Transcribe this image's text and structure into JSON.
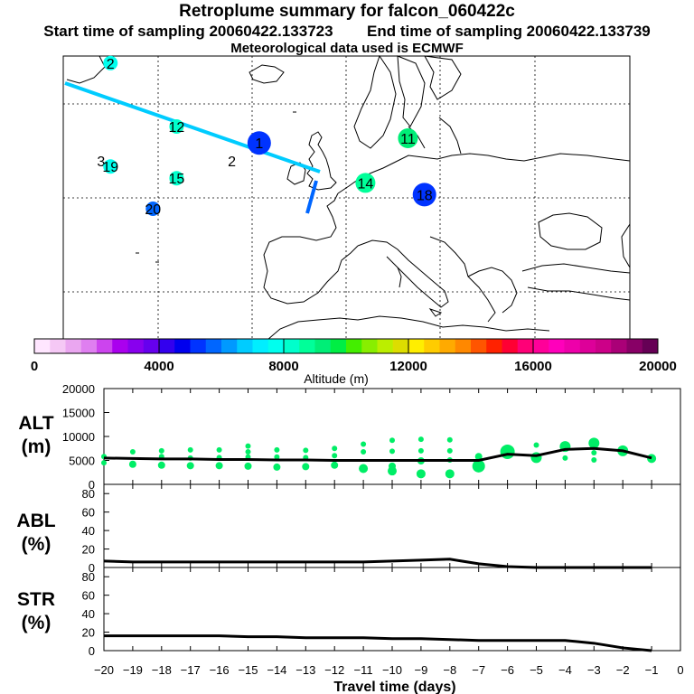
{
  "header": {
    "title": "Retroplume summary for falcon_060422c",
    "start_label": "Start time of sampling 20060422.133723",
    "end_label": "End time of sampling 20060422.133739",
    "met_label": "Meteorological data used is ECMWF"
  },
  "map": {
    "labels": [
      {
        "text": "12",
        "lon": -16,
        "lat": 55,
        "altitude_m": 8000,
        "marker": "small"
      },
      {
        "text": "11",
        "lon": 33,
        "lat": 52.5,
        "altitude_m": 9000,
        "marker": "medium"
      },
      {
        "text": "3",
        "lon": -32,
        "lat": 47.7,
        "altitude_m": null,
        "marker": "none"
      },
      {
        "text": "19",
        "lon": -30,
        "lat": 46.5,
        "altitude_m": 7500,
        "marker": "small"
      },
      {
        "text": "2",
        "lon": -4.3,
        "lat": 47.7,
        "altitude_m": null,
        "marker": "none"
      },
      {
        "text": "15",
        "lon": -16,
        "lat": 44,
        "altitude_m": 8000,
        "marker": "small"
      },
      {
        "text": "14",
        "lon": 24,
        "lat": 43,
        "altitude_m": 8500,
        "marker": "medium"
      },
      {
        "text": "18",
        "lon": 36.5,
        "lat": 40.5,
        "altitude_m": 5000,
        "marker": "large"
      },
      {
        "text": "20",
        "lon": -21,
        "lat": 37.5,
        "altitude_m": 5500,
        "marker": "small"
      },
      {
        "text": "1",
        "lon": 1.5,
        "lat": 51.5,
        "altitude_m": 5000,
        "marker": "large"
      },
      {
        "text": "2",
        "lon": -30,
        "lat": 68.5,
        "altitude_m": 7500,
        "marker": "small"
      }
    ]
  },
  "colorbar": {
    "title": "Altitude (m)",
    "tick_labels": [
      "0",
      "4000",
      "8000",
      "12000",
      "16000",
      "20000"
    ],
    "min": 0,
    "max": 20000,
    "colors": [
      "#ffe6ff",
      "#f5c8f5",
      "#eaa6f0",
      "#df7ff0",
      "#cc44ee",
      "#aa00ee",
      "#8800ee",
      "#6600ee",
      "#3300ee",
      "#0000ee",
      "#0033ff",
      "#0066ff",
      "#0099ff",
      "#00ccff",
      "#00eeff",
      "#00ffee",
      "#00ffcc",
      "#00ff99",
      "#00ee77",
      "#00ee44",
      "#44ee00",
      "#88ee00",
      "#bbee00",
      "#dddd00",
      "#ffee00",
      "#ffcc00",
      "#ffaa00",
      "#ff8800",
      "#ff5500",
      "#ff2200",
      "#ff0033",
      "#ff0077",
      "#ff0099",
      "#ff00bb",
      "#ee00aa",
      "#dd0099",
      "#cc0088",
      "#aa0077",
      "#880066",
      "#660055"
    ]
  },
  "chart_data": [
    {
      "type": "scatter",
      "panel": "ALT",
      "ylabel": "ALT\n(m)",
      "ylabel_lines": [
        "ALT",
        "(m)"
      ],
      "ylim": [
        0,
        20000
      ],
      "yticks": [
        0,
        5000,
        10000,
        15000,
        20000
      ],
      "ytick_labels": [
        "0",
        "5000",
        "10000",
        "15000",
        "20000"
      ],
      "x": [
        -20,
        -19,
        -18,
        -17,
        -16,
        -15,
        -14,
        -13,
        -12,
        -11,
        -10,
        -9,
        -8,
        -7,
        -6,
        -5,
        -4,
        -3,
        -2,
        -1
      ],
      "mean_line": [
        5500,
        5400,
        5300,
        5300,
        5200,
        5200,
        5100,
        5100,
        5000,
        5000,
        5000,
        5000,
        5000,
        5000,
        6300,
        6000,
        7300,
        7500,
        7000,
        5500
      ],
      "clusters": [
        {
          "x": -20,
          "y": [
            5800,
            4500
          ],
          "size": [
            3,
            3
          ]
        },
        {
          "x": -19,
          "y": [
            6800,
            4200
          ],
          "size": [
            3,
            4
          ]
        },
        {
          "x": -18,
          "y": [
            7000,
            5800,
            4000
          ],
          "size": [
            3,
            3,
            4
          ]
        },
        {
          "x": -17,
          "y": [
            7200,
            5500,
            3900
          ],
          "size": [
            3,
            3,
            4
          ]
        },
        {
          "x": -16,
          "y": [
            7200,
            5600,
            3900
          ],
          "size": [
            3,
            3,
            4
          ]
        },
        {
          "x": -15,
          "y": [
            8000,
            6800,
            5700,
            3800
          ],
          "size": [
            3,
            3,
            3,
            4
          ]
        },
        {
          "x": -14,
          "y": [
            7200,
            5700,
            3600
          ],
          "size": [
            3,
            3,
            4
          ]
        },
        {
          "x": -13,
          "y": [
            7100,
            5600,
            3700
          ],
          "size": [
            3,
            3,
            4
          ]
        },
        {
          "x": -12,
          "y": [
            7500,
            6000,
            4000
          ],
          "size": [
            3,
            3,
            4
          ]
        },
        {
          "x": -11,
          "y": [
            8400,
            6800,
            3300
          ],
          "size": [
            3,
            3,
            5
          ]
        },
        {
          "x": -10,
          "y": [
            9200,
            6900,
            3800,
            2800
          ],
          "size": [
            3,
            3,
            4,
            5
          ]
        },
        {
          "x": -9,
          "y": [
            9400,
            7000,
            4900,
            2200
          ],
          "size": [
            3,
            3,
            4,
            5
          ]
        },
        {
          "x": -8,
          "y": [
            9300,
            7000,
            5100,
            2200
          ],
          "size": [
            3,
            3,
            3,
            5
          ]
        },
        {
          "x": -7,
          "y": [
            5800,
            3800
          ],
          "size": [
            4,
            7
          ]
        },
        {
          "x": -6,
          "y": [
            6800
          ],
          "size": [
            8
          ]
        },
        {
          "x": -5,
          "y": [
            8200,
            5600
          ],
          "size": [
            3,
            6
          ]
        },
        {
          "x": -4,
          "y": [
            7900,
            5500
          ],
          "size": [
            6,
            3
          ]
        },
        {
          "x": -3,
          "y": [
            8600,
            6600,
            5100
          ],
          "size": [
            6,
            3,
            3
          ]
        },
        {
          "x": -2,
          "y": [
            7000
          ],
          "size": [
            6
          ]
        },
        {
          "x": -1,
          "y": [
            5400
          ],
          "size": [
            5
          ]
        }
      ]
    },
    {
      "type": "line",
      "panel": "ABL",
      "ylabel": "ABL\n(%)",
      "ylabel_lines": [
        "ABL",
        "(%)"
      ],
      "ylim": [
        0,
        90
      ],
      "yticks": [
        0,
        20,
        40,
        60,
        80
      ],
      "ytick_labels": [
        "0",
        "20",
        "40",
        "60",
        "80"
      ],
      "x": [
        -20,
        -19,
        -18,
        -17,
        -16,
        -15,
        -14,
        -13,
        -12,
        -11,
        -10,
        -9,
        -8,
        -7,
        -6,
        -5,
        -4,
        -3,
        -2,
        -1
      ],
      "values": [
        7,
        6,
        6,
        6,
        6,
        6,
        6,
        6,
        6,
        6,
        7,
        8,
        9,
        4,
        1,
        0,
        0,
        0,
        0,
        0
      ]
    },
    {
      "type": "line",
      "panel": "STR",
      "ylabel": "STR\n(%)",
      "ylabel_lines": [
        "STR",
        "(%)"
      ],
      "ylim": [
        0,
        90
      ],
      "yticks": [
        0,
        20,
        40,
        60,
        80
      ],
      "ytick_labels": [
        "0",
        "20",
        "40",
        "60",
        "80"
      ],
      "x": [
        -20,
        -19,
        -18,
        -17,
        -16,
        -15,
        -14,
        -13,
        -12,
        -11,
        -10,
        -9,
        -8,
        -7,
        -6,
        -5,
        -4,
        -3,
        -2,
        -1
      ],
      "values": [
        16,
        16,
        16,
        16,
        16,
        15,
        15,
        14,
        14,
        14,
        13,
        13,
        12,
        11,
        11,
        11,
        11,
        8,
        3,
        0
      ]
    }
  ],
  "xaxis": {
    "label": "Travel time (days)",
    "ticks": [
      -20,
      -19,
      -18,
      -17,
      -16,
      -15,
      -14,
      -13,
      -12,
      -11,
      -10,
      -9,
      -8,
      -7,
      -6,
      -5,
      -4,
      -3,
      -2,
      -1,
      0
    ],
    "tick_labels": [
      "−20",
      "−19",
      "−18",
      "−17",
      "−16",
      "−15",
      "−14",
      "−13",
      "−12",
      "−11",
      "−10",
      "−9",
      "−8",
      "−7",
      "−6",
      "−5",
      "−4",
      "−3",
      "−2",
      "−1",
      "0"
    ]
  },
  "colors": {
    "plume_line": "#00ccff",
    "cluster_marker": "#00ee66",
    "mean_line": "#000000"
  }
}
